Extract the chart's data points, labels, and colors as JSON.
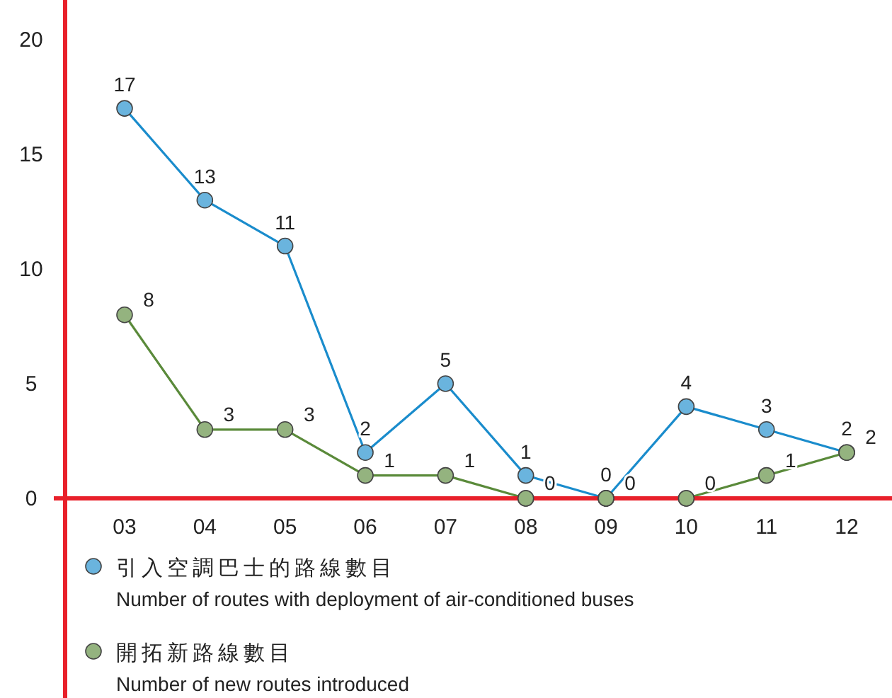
{
  "chart_data": {
    "type": "line",
    "categories": [
      "03",
      "04",
      "05",
      "06",
      "07",
      "08",
      "09",
      "10",
      "11",
      "12"
    ],
    "series": [
      {
        "name": "引入空調巴士的路線數目\nNumber of routes with deployment of air-conditioned buses",
        "color": "#1a8ccc",
        "values": [
          17,
          13,
          11,
          2,
          5,
          1,
          0,
          4,
          3,
          2
        ]
      },
      {
        "name": "開拓新路線數目\nNumber of new routes introduced",
        "color": "#5a8a3a",
        "values": [
          8,
          3,
          3,
          1,
          1,
          0,
          0,
          0,
          1,
          2
        ]
      }
    ],
    "ylim": [
      0,
      21.7
    ],
    "yticks": [
      0,
      5,
      10,
      15,
      20
    ],
    "data_labels": true,
    "marker": "circle",
    "line_style": "solid",
    "grid": false,
    "legend": "bottom"
  }
}
